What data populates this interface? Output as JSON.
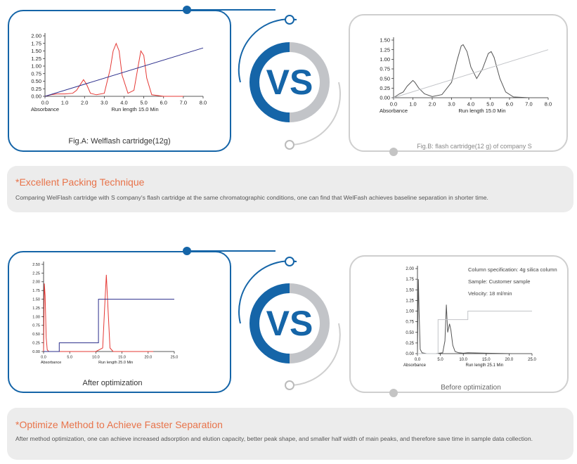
{
  "vs_label": "VS",
  "colors": {
    "blue": "#1565a8",
    "grey": "#c2c4c8",
    "red": "#e53935",
    "navy": "#2b2f8c",
    "gray_line": "#555555",
    "accent": "#e8734a"
  },
  "top": {
    "left_caption": "Fig.A: Welflash cartridge(12g)",
    "right_caption": "Fig.B: flash cartridge(12 g) of company S"
  },
  "section1": {
    "title": "*Excellent Packing Technique",
    "body": "Comparing WelFlash cartridge with S company's flash cartridge at the same chromatographic conditions, one can find that WelFash achieves baseline separation in shorter time."
  },
  "bottom": {
    "left_caption": "After optimization",
    "right_caption": "Before optimization",
    "info_lines": [
      "Column specification: 4g silica column",
      "Sample: Customer sample",
      "Velocity: 18 ml/min"
    ]
  },
  "section2": {
    "title": "*Optimize Method to Achieve Faster Separation",
    "body": "After method optimization, one can achieve increased adsorption and elution capacity, better peak shape, and smaller half width of main peaks, and therefore save time in sample data collection."
  },
  "chart_data": [
    {
      "type": "line",
      "xlabel": "Run length 15.0 Min",
      "ylabel": "Absorbance",
      "xlim": [
        0,
        8
      ],
      "ylim": [
        0,
        2
      ],
      "xticks": [
        "0.0",
        "1.0",
        "2.0",
        "3.0",
        "4.0",
        "5.0",
        "6.0",
        "7.0",
        "8.0"
      ],
      "yticks": [
        "0.00",
        "0.25",
        "0.50",
        "0.75",
        "1.00",
        "1.25",
        "1.50",
        "1.75",
        "2.00"
      ],
      "series": [
        {
          "color": "red",
          "x": [
            0,
            0.3,
            0.6,
            1,
            1.4,
            1.6,
            1.8,
            1.95,
            2.1,
            2.3,
            2.6,
            3.0,
            3.3,
            3.45,
            3.6,
            3.75,
            3.9,
            4.2,
            4.5,
            4.7,
            4.85,
            5.0,
            5.15,
            5.4,
            6,
            7
          ],
          "y": [
            0,
            0.05,
            0.08,
            0.08,
            0.1,
            0.2,
            0.4,
            0.55,
            0.4,
            0.1,
            0.05,
            0.1,
            0.9,
            1.5,
            1.75,
            1.5,
            0.7,
            0.1,
            0.2,
            0.95,
            1.5,
            1.35,
            0.6,
            0.05,
            0,
            0
          ]
        },
        {
          "color": "navy",
          "x": [
            0,
            8
          ],
          "y": [
            0,
            1.6
          ]
        }
      ]
    },
    {
      "type": "line",
      "xlabel": "Run length 15.0 Min",
      "ylabel": "Absorbance",
      "xlim": [
        0,
        8
      ],
      "ylim": [
        0,
        1.5
      ],
      "xticks": [
        "0.0",
        "1.0",
        "2.0",
        "3.0",
        "4.0",
        "5.0",
        "6.0",
        "7.0",
        "8.0"
      ],
      "yticks": [
        "0.00",
        "0.25",
        "0.50",
        "0.75",
        "1.00",
        "1.25",
        "1.50"
      ],
      "series": [
        {
          "color": "gray_line",
          "x": [
            0,
            0.3,
            0.5,
            0.7,
            0.9,
            1.0,
            1.1,
            1.3,
            1.6,
            2.0,
            2.5,
            3.0,
            3.3,
            3.5,
            3.6,
            3.8,
            4.0,
            4.3,
            4.6,
            4.9,
            5.05,
            5.2,
            5.5,
            5.8,
            6.2,
            7,
            8
          ],
          "y": [
            0,
            0.1,
            0.15,
            0.3,
            0.4,
            0.45,
            0.4,
            0.25,
            0.1,
            0.03,
            0.08,
            0.4,
            1.0,
            1.35,
            1.38,
            1.2,
            0.8,
            0.5,
            0.75,
            1.15,
            1.2,
            1.05,
            0.5,
            0.15,
            0.02,
            0,
            0
          ]
        },
        {
          "color": "grey",
          "x": [
            0,
            8
          ],
          "y": [
            0,
            1.25
          ]
        }
      ]
    },
    {
      "type": "line",
      "xlabel": "Run length 25.0 Min",
      "ylabel": "Absorbance",
      "xlim": [
        0,
        25
      ],
      "ylim": [
        0,
        2.5
      ],
      "xticks": [
        "0.0",
        "5.0",
        "10.0",
        "15.0",
        "20.0",
        "25.0"
      ],
      "yticks": [
        "0.00",
        "0.25",
        "0.50",
        "0.75",
        "1.00",
        "1.25",
        "1.50",
        "1.75",
        "2.00",
        "2.25",
        "2.50"
      ],
      "series": [
        {
          "color": "red",
          "x": [
            0,
            0.15,
            0.3,
            0.5,
            0.7,
            1.0,
            3,
            6,
            10,
            11.3,
            11.7,
            12.0,
            12.3,
            12.7,
            13.3,
            16,
            21
          ],
          "y": [
            0,
            1.95,
            1.6,
            0.4,
            0.05,
            0,
            0,
            0,
            0,
            0.1,
            1.3,
            2.2,
            1.3,
            0.1,
            0,
            0,
            0
          ]
        },
        {
          "color": "navy",
          "x": [
            0,
            3,
            3,
            10.5,
            10.5,
            25
          ],
          "y": [
            0,
            0,
            0.25,
            0.25,
            1.5,
            1.5
          ]
        }
      ]
    },
    {
      "type": "line",
      "xlabel": "Run length 25.1 Min",
      "ylabel": "Absorbance",
      "xlim": [
        0,
        25
      ],
      "ylim": [
        0,
        2
      ],
      "xticks": [
        "0.0",
        "5.0",
        "10.0",
        "15.0",
        "20.0",
        "25.0"
      ],
      "yticks": [
        "0.00",
        "0.25",
        "0.50",
        "0.75",
        "1.00",
        "1.25",
        "1.50",
        "1.75",
        "2.00"
      ],
      "series": [
        {
          "color": "gray_line",
          "x": [
            0,
            0.2,
            0.35,
            0.6,
            1.0,
            2,
            4,
            5.5,
            6.0,
            6.3,
            6.6,
            6.8,
            7.0,
            7.3,
            7.7,
            8.2,
            9,
            10,
            11,
            15,
            20.5
          ],
          "y": [
            0,
            1.75,
            1.0,
            0.1,
            0.02,
            0,
            0,
            0.02,
            0.3,
            1.15,
            0.5,
            0.6,
            0.7,
            0.55,
            0.2,
            0.05,
            0.02,
            0.01,
            0.02,
            0.01,
            0
          ]
        },
        {
          "color": "grey",
          "x": [
            0,
            4.5,
            4.5,
            11,
            11,
            25
          ],
          "y": [
            0,
            0,
            0.8,
            0.8,
            1.0,
            1.0
          ]
        }
      ]
    }
  ]
}
